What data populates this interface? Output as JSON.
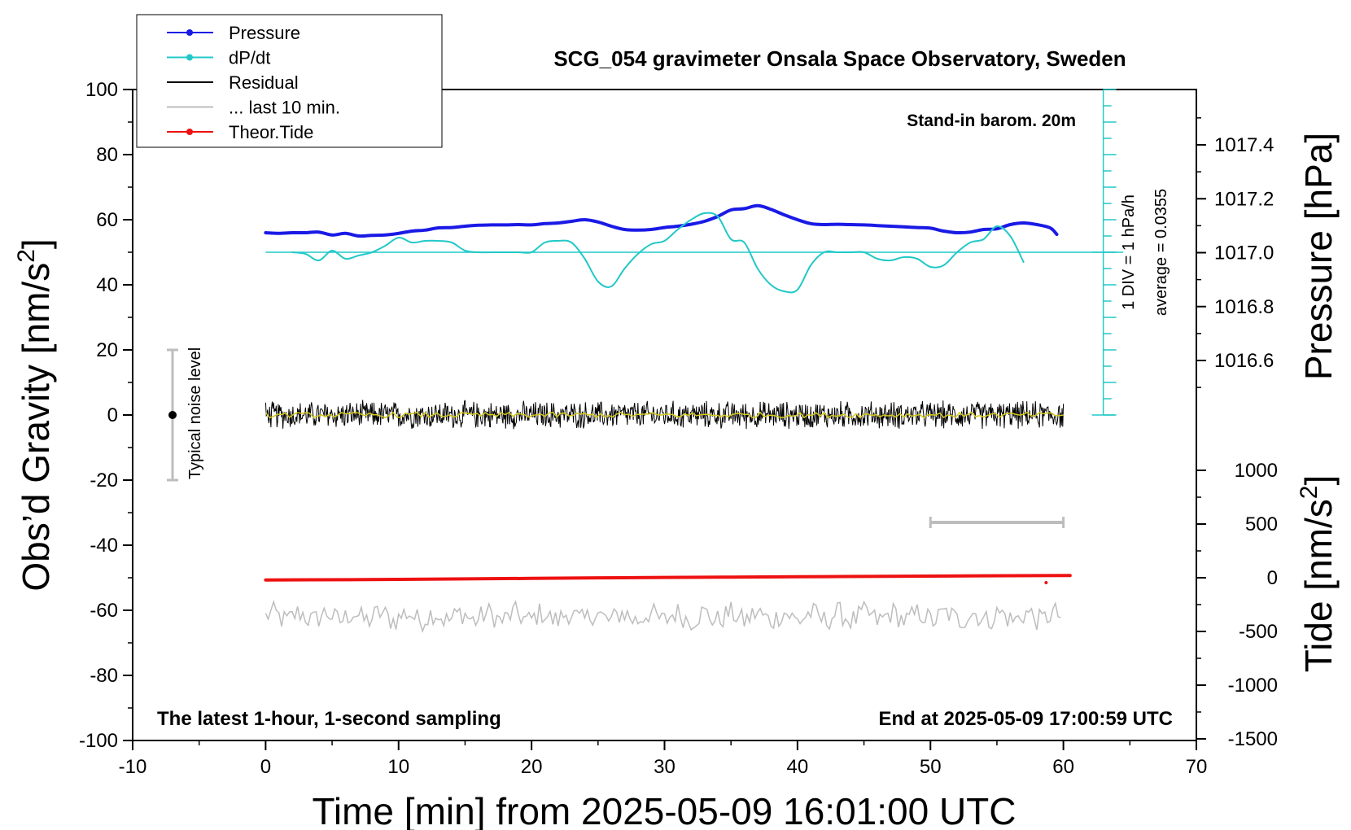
{
  "chart_data": {
    "type": "line",
    "title": "SCG_054 gravimeter Onsala Space Observatory, Sweden",
    "xlabel": "Time [min] from 2025-05-09 16:01:00 UTC",
    "ylabel_left": "Obs’d Gravity [nm/s",
    "ylabel_left_sup": "2",
    "ylabel_left_end": "]",
    "ylabel_right_top": "Pressure [hPa]",
    "ylabel_right_bottom": "Tide [nm/s",
    "ylabel_right_bottom_sup": "2",
    "ylabel_right_bottom_end": "]",
    "xlim": [
      -10,
      70
    ],
    "ylim": [
      -100,
      100
    ],
    "x_ticks": [
      -10,
      0,
      10,
      20,
      30,
      40,
      50,
      60,
      70
    ],
    "y_ticks": [
      -100,
      -80,
      -60,
      -40,
      -20,
      0,
      20,
      40,
      60,
      80,
      100
    ],
    "pressure_axis": {
      "values": [
        1016.6,
        1016.8,
        1017.0,
        1017.2,
        1017.4
      ],
      "labels": [
        "1016.6",
        "1016.8",
        "1017.0",
        "1017.2",
        "1017.4"
      ]
    },
    "tide_axis": {
      "values": [
        -1500,
        -1000,
        -500,
        0,
        500,
        1000
      ],
      "labels": [
        "-1500",
        "-1000",
        "-500",
        "0",
        "500",
        "1000"
      ]
    },
    "legend": {
      "position": "top-left",
      "entries": [
        {
          "label": "Pressure",
          "color": "#1a1ae6",
          "marker": true
        },
        {
          "label": "dP/dt",
          "color": "#22c8c8",
          "marker": true
        },
        {
          "label": "Residual",
          "color": "#000000",
          "marker": false
        },
        {
          "label": "... last 10 min.",
          "color": "#bdbdbd",
          "marker": false
        },
        {
          "label": "Theor.Tide",
          "color": "#ee1111",
          "marker": true
        }
      ]
    },
    "annotations": {
      "barom": "Stand-in barom. 20m",
      "div": "1 DIV = 1 hPa/h",
      "average": "average = 0.0355",
      "noise": "Typical noise level",
      "bottom_left": "The latest 1-hour, 1-second sampling",
      "bottom_right": "End at 2025-05-09 17:00:59 UTC"
    },
    "noise_bar": {
      "x": -7,
      "center": 0,
      "half_range": 20
    },
    "last10_bar": {
      "x_start": 50,
      "x_end": 60,
      "y": -33
    },
    "series": [
      {
        "name": "Pressure",
        "color": "#1a1ae6",
        "x": [
          0,
          1,
          2,
          3,
          4,
          5,
          6,
          7,
          8,
          9,
          10,
          11,
          12,
          13,
          14,
          15,
          16,
          17,
          18,
          19,
          20,
          21,
          22,
          23,
          24,
          25,
          26,
          27,
          28,
          29,
          30,
          31,
          32,
          33,
          34,
          35,
          36,
          37,
          38,
          39,
          40,
          41,
          42,
          43,
          44,
          45,
          46,
          47,
          48,
          49,
          50,
          51,
          52,
          53,
          54,
          55,
          56,
          57,
          58,
          59,
          59.5
        ],
        "y": [
          56,
          55.8,
          56,
          56,
          56.2,
          55.3,
          55.8,
          55,
          55.2,
          55.3,
          55.8,
          56.5,
          56.8,
          57.5,
          57.6,
          58,
          58.3,
          58.4,
          58.4,
          58.5,
          58.4,
          58.8,
          59,
          59.5,
          60,
          59.3,
          58,
          57,
          56.8,
          57,
          57.6,
          58,
          58.6,
          59.5,
          61,
          63,
          63.4,
          64.3,
          63.2,
          61.5,
          60,
          58.8,
          58.5,
          58.6,
          58.5,
          58.4,
          58.2,
          58,
          57.8,
          57.6,
          57.4,
          56.5,
          56,
          56.2,
          57,
          57.2,
          58.5,
          59,
          58.5,
          57.5,
          55.5
        ]
      },
      {
        "name": "dP/dt",
        "color": "#22c8c8",
        "x": [
          2,
          3,
          4,
          5,
          6,
          7,
          8,
          9,
          10,
          11,
          12,
          13,
          14,
          15,
          16,
          17,
          18,
          19,
          20,
          21,
          22,
          23,
          24,
          25,
          26,
          27,
          28,
          29,
          30,
          31,
          32,
          33,
          34,
          35,
          36,
          37,
          38,
          39,
          40,
          41,
          42,
          43,
          44,
          45,
          46,
          47,
          48,
          49,
          50,
          51,
          52,
          53,
          54,
          55,
          56,
          57
        ],
        "y": [
          50,
          49.5,
          47.5,
          50.5,
          48,
          49,
          50,
          52,
          54.5,
          53,
          53.5,
          53.5,
          53,
          50.5,
          50,
          50,
          50,
          50,
          50,
          53,
          53.5,
          53,
          48,
          41,
          39.5,
          45,
          49.5,
          52.5,
          53.5,
          57,
          60,
          62,
          61,
          54,
          53,
          45,
          40,
          38,
          38.5,
          46,
          50,
          50,
          50,
          50,
          48,
          47.5,
          48.5,
          48,
          45.5,
          46,
          50,
          53,
          54,
          58,
          55,
          47
        ]
      },
      {
        "name": "Theor.Tide",
        "color": "#ee1111",
        "x": [
          0,
          10,
          20,
          30,
          40,
          50,
          60.5
        ],
        "y": [
          -50.7,
          -50.5,
          -50.2,
          -49.9,
          -49.7,
          -49.5,
          -49.3
        ]
      }
    ],
    "dpdt_baseline": 50,
    "residual": {
      "center": 0,
      "amplitude": 4,
      "color": "#000000",
      "smooth_color": "#d4c81a"
    },
    "last10": {
      "center": -62,
      "amplitude": 3.5,
      "color": "#bdbdbd"
    }
  }
}
